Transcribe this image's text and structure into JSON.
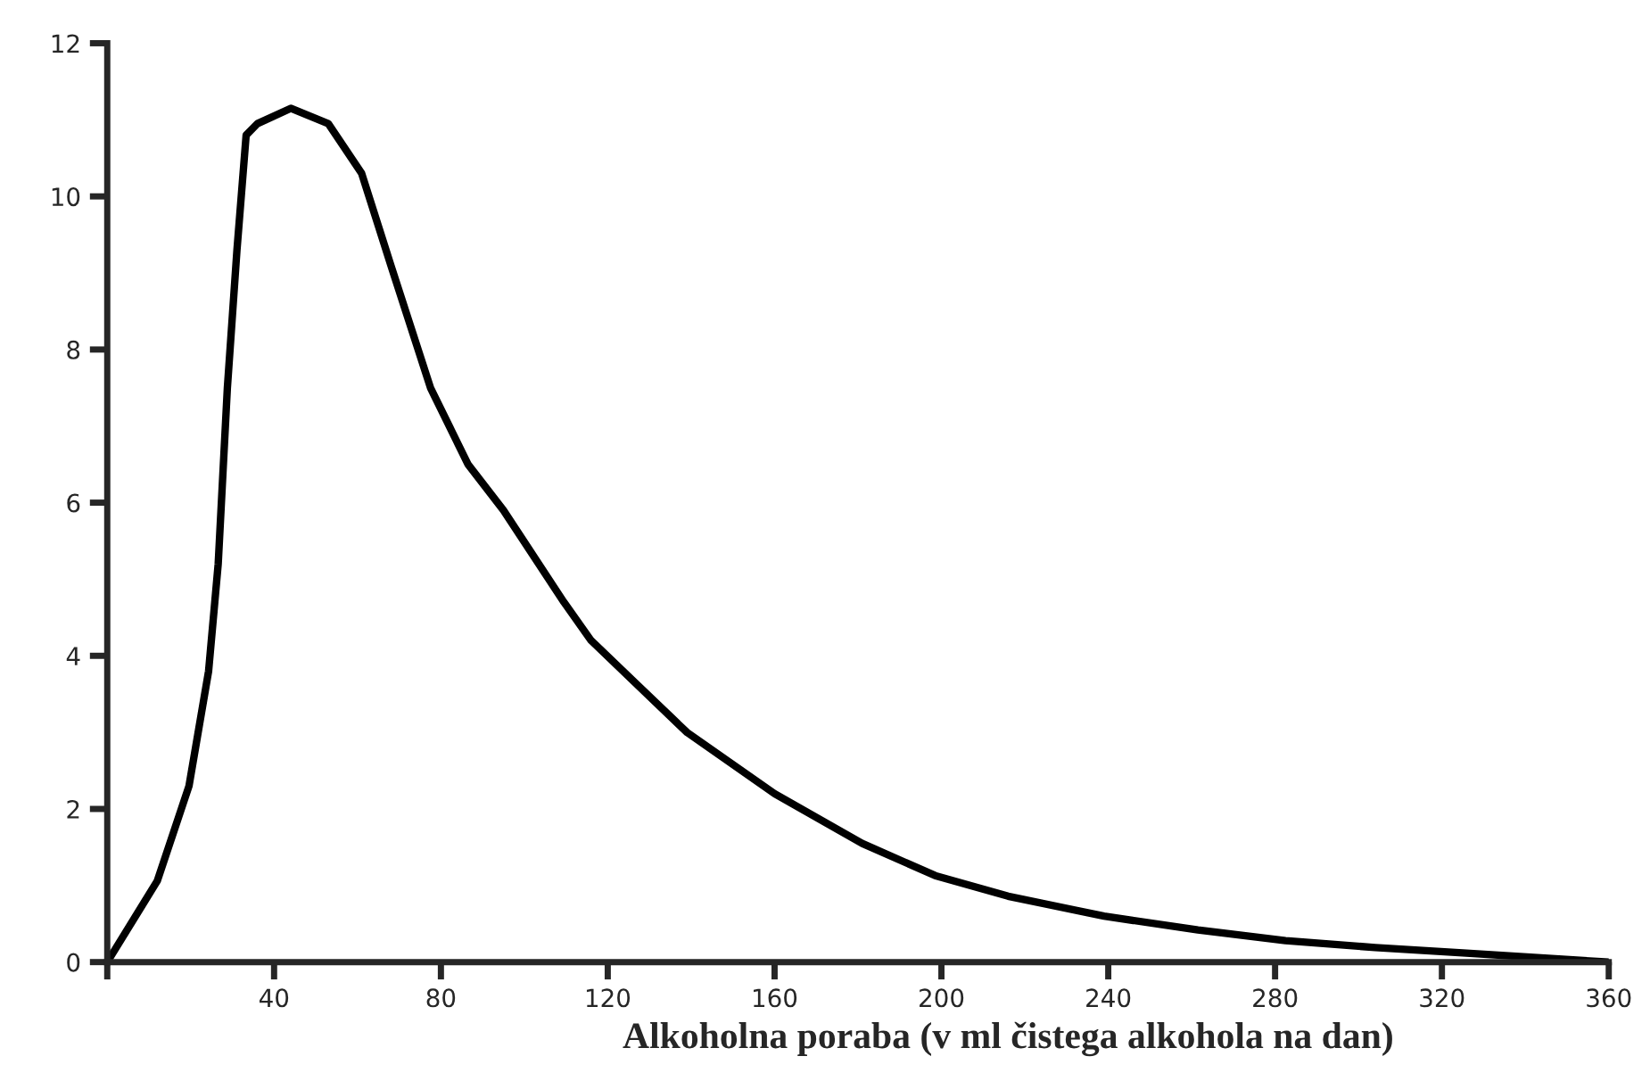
{
  "chart_data": {
    "type": "line",
    "xlabel": "Alkoholna poraba (v ml čistega alkohola na dan)",
    "xlim": [
      0,
      360
    ],
    "ylim": [
      0,
      12
    ],
    "xticks": [
      {
        "value": 0,
        "label": null
      },
      40,
      80,
      120,
      160,
      200,
      240,
      280,
      320,
      360
    ],
    "yticks": [
      0,
      2,
      4,
      6,
      8,
      10,
      12
    ],
    "grid": false,
    "marker": "none",
    "line_style": "solid",
    "series": [
      {
        "color": "#000000",
        "x": [
          0,
          12,
          19.6,
          24.3,
          26.6,
          28.8,
          31.1,
          33.3,
          36,
          44,
          53,
          61,
          68,
          77.5,
          86.5,
          95,
          109.5,
          116,
          139,
          160,
          181,
          198.5,
          216,
          239,
          261.5,
          282.5,
          304,
          325,
          360
        ],
        "values": [
          0,
          1.06,
          2.3,
          3.8,
          5.2,
          7.5,
          9.3,
          10.8,
          10.95,
          11.15,
          10.95,
          10.3,
          9.1,
          7.5,
          6.5,
          5.9,
          4.7,
          4.2,
          3.0,
          2.2,
          1.55,
          1.13,
          0.86,
          0.6,
          0.42,
          0.28,
          0.19,
          0.12,
          0
        ]
      }
    ]
  }
}
